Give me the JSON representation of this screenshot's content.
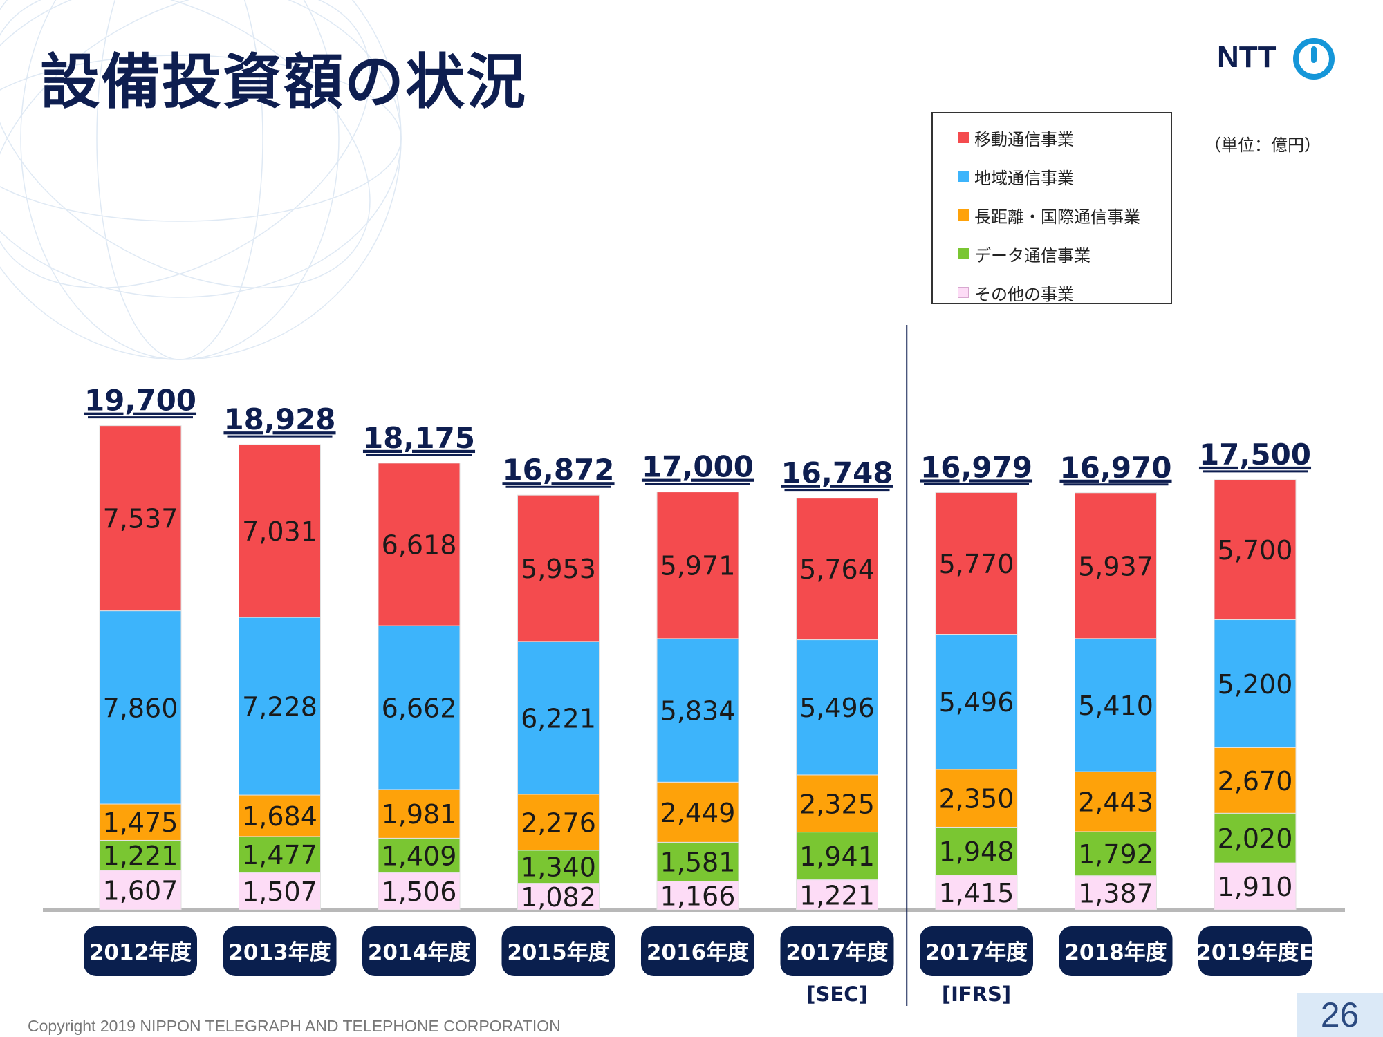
{
  "title": "設備投資額の状況",
  "logo": {
    "text": "NTT",
    "mark": "ntt-logo-mark-icon"
  },
  "unit_note": "（単位：億円）",
  "footer": "Copyright 2019 NIPPON TELEGRAPH AND TELEPHONE CORPORATION",
  "page_number": "26",
  "legend": [
    {
      "label": "移動通信事業",
      "color": "#f44b4e"
    },
    {
      "label": "地域通信事業",
      "color": "#3db4fb"
    },
    {
      "label": "長距離・国際通信事業",
      "color": "#fea20a"
    },
    {
      "label": "データ通信事業",
      "color": "#7ac632"
    },
    {
      "label": "その他の事業",
      "color": "#fddcf6"
    }
  ],
  "chart_data": {
    "type": "bar",
    "stacked": true,
    "categories": [
      "2012年度",
      "2013年度",
      "2014年度",
      "2015年度",
      "2016年度",
      "2017年度",
      "2017年度",
      "2018年度",
      "2019年度E"
    ],
    "category_notes": [
      "",
      "",
      "",
      "",
      "",
      "[SEC]",
      "[IFRS]",
      "",
      ""
    ],
    "totals": [
      "19,700",
      "18,928",
      "18,175",
      "16,872",
      "17,000",
      "16,748",
      "16,979",
      "16,970",
      "17,500"
    ],
    "series": [
      {
        "name": "その他の事業",
        "color": "#fddcf6",
        "values": [
          1607,
          1507,
          1506,
          1082,
          1166,
          1221,
          1415,
          1387,
          1910
        ]
      },
      {
        "name": "データ通信事業",
        "color": "#7ac632",
        "values": [
          1221,
          1477,
          1409,
          1340,
          1581,
          1941,
          1948,
          1792,
          2020
        ]
      },
      {
        "name": "長距離・国際通信事業",
        "color": "#fea20a",
        "values": [
          1475,
          1684,
          1981,
          2276,
          2449,
          2325,
          2350,
          2443,
          2670
        ]
      },
      {
        "name": "地域通信事業",
        "color": "#3db4fb",
        "values": [
          7860,
          7228,
          6662,
          6221,
          5834,
          5496,
          5496,
          5410,
          5200
        ]
      },
      {
        "name": "移動通信事業",
        "color": "#f44b4e",
        "values": [
          7537,
          7031,
          6618,
          5953,
          5971,
          5764,
          5770,
          5937,
          5700
        ]
      }
    ],
    "divider_after_index": 5,
    "legend_position": "top-right",
    "grid": false
  }
}
